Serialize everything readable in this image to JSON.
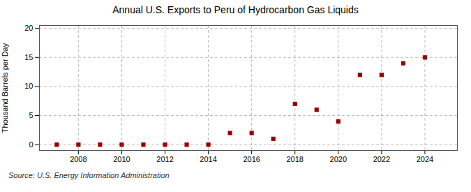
{
  "chart_data": {
    "type": "scatter",
    "title": "Annual U.S. Exports to Peru of Hydrocarbon Gas Liquids",
    "ylabel": "Thousand Barrels per Day",
    "source": "Source: U.S. Energy Information Administration",
    "x": [
      2007,
      2008,
      2009,
      2010,
      2011,
      2012,
      2013,
      2014,
      2015,
      2016,
      2017,
      2018,
      2019,
      2020,
      2021,
      2022,
      2023,
      2024
    ],
    "values": [
      0.0,
      0.0,
      0.0,
      0.0,
      0.0,
      0.0,
      0.0,
      0.0,
      2.0,
      2.0,
      1.0,
      7.0,
      6.0,
      4.0,
      12.0,
      12.0,
      14.0,
      15.0
    ],
    "color": "#990000",
    "marker": "square",
    "xlim": [
      2006.2,
      2025.5
    ],
    "xticks": [
      2008,
      2010,
      2012,
      2014,
      2016,
      2018,
      2020,
      2022,
      2024
    ],
    "ylim": [
      -1.0,
      20.5
    ],
    "yticks": [
      0,
      5,
      10,
      15,
      20
    ],
    "grid": true
  }
}
